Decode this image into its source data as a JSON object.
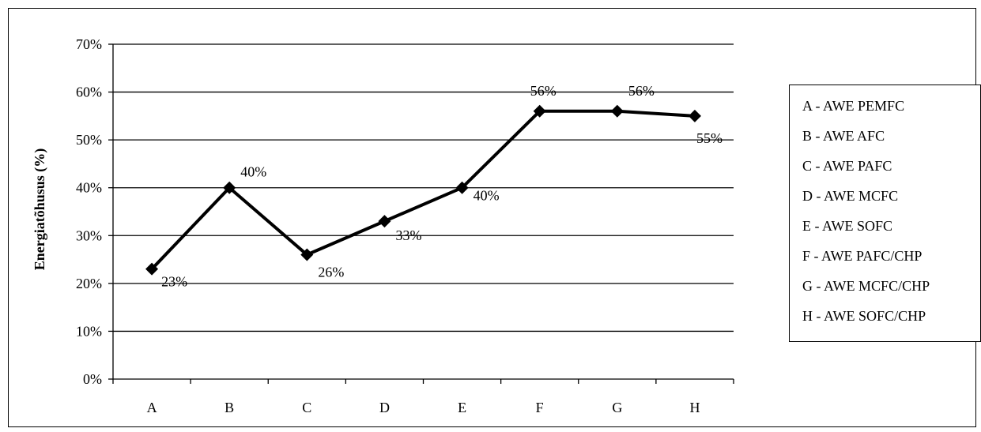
{
  "chart_data": {
    "type": "line",
    "categories": [
      "A",
      "B",
      "C",
      "D",
      "E",
      "F",
      "G",
      "H"
    ],
    "series": [
      {
        "values": [
          23,
          40,
          26,
          33,
          40,
          56,
          56,
          55
        ],
        "color": "#000000",
        "marker": "diamond"
      }
    ],
    "data_labels": [
      "23%",
      "40%",
      "26%",
      "33%",
      "40%",
      "56%",
      "56%",
      "55%"
    ],
    "ylabel": "Energiatõhusus (%)",
    "ylim": [
      0,
      70
    ],
    "yticks": [
      0,
      10,
      20,
      30,
      40,
      50,
      60,
      70
    ],
    "ytick_labels": [
      "0%",
      "10%",
      "20%",
      "30%",
      "40%",
      "50%",
      "60%",
      "70%"
    ],
    "grid": true,
    "legend_position": "right",
    "legend": [
      "A - AWE PEMFC",
      "B - AWE AFC",
      "C - AWE PAFC",
      "D - AWE MCFC",
      "E - AWE SOFC",
      "F - AWE PAFC/CHP",
      "G - AWE MCFC/CHP",
      "H - AWE SOFC/CHP"
    ]
  }
}
